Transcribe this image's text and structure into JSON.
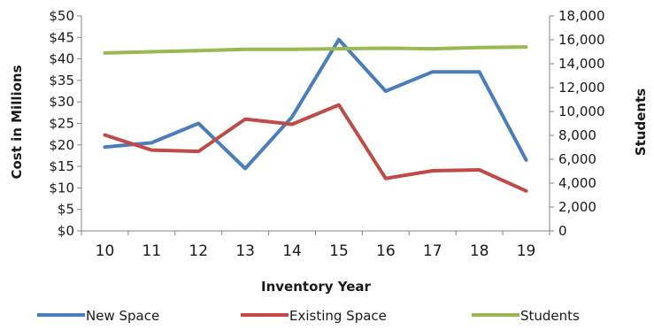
{
  "chart_data": {
    "type": "line",
    "x": [
      "10",
      "11",
      "12",
      "13",
      "14",
      "15",
      "16",
      "17",
      "18",
      "19"
    ],
    "xlabel": "Inventory Year",
    "ylabel": "Cost in Millions",
    "y2label": "Students",
    "ylim": [
      0,
      50
    ],
    "y2lim": [
      0,
      18000
    ],
    "yticks": [
      "$0",
      "$5",
      "$10",
      "$15",
      "$20",
      "$25",
      "$30",
      "$35",
      "$40",
      "$45",
      "$50"
    ],
    "y2ticks": [
      "0",
      "2,000",
      "4,000",
      "6,000",
      "8,000",
      "10,000",
      "12,000",
      "14,000",
      "16,000",
      "18,000"
    ],
    "grid": false,
    "legend_position": "bottom",
    "series": [
      {
        "name": "New Space",
        "axis": "left",
        "color": "#4a7ebb",
        "values": [
          19.5,
          20.5,
          25.0,
          14.5,
          26.5,
          44.5,
          32.5,
          37.0,
          37.0,
          16.5
        ]
      },
      {
        "name": "Existing Space",
        "axis": "left",
        "color": "#be4b48",
        "values": [
          22.3,
          18.8,
          18.5,
          26.0,
          24.8,
          29.3,
          12.2,
          14.0,
          14.2,
          9.3
        ]
      },
      {
        "name": "Students",
        "axis": "right",
        "color": "#98b954",
        "values": [
          14900,
          15000,
          15100,
          15200,
          15200,
          15250,
          15300,
          15250,
          15350,
          15400
        ]
      }
    ]
  }
}
